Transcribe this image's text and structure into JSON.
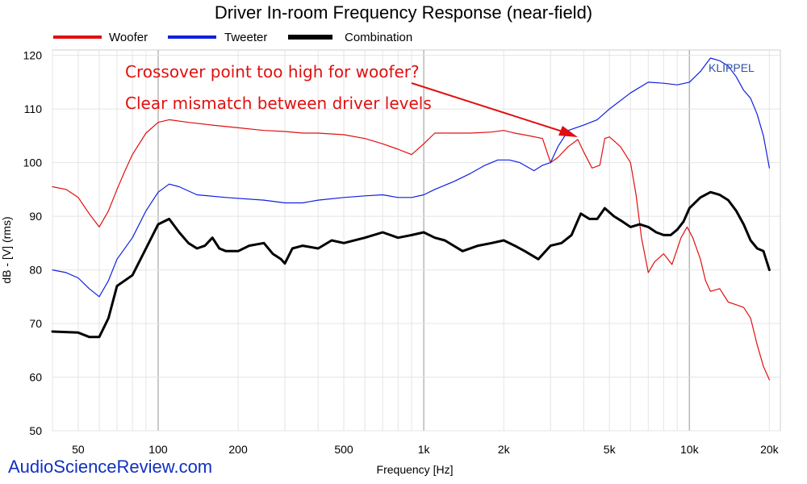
{
  "chart_data": {
    "type": "line",
    "title": "Driver In-room Frequency Response (near-field)",
    "xlabel": "Frequency [Hz]",
    "ylabel": "dB - [V] (rms)",
    "x_scale": "log",
    "xlim": [
      40,
      22000
    ],
    "ylim": [
      50,
      121
    ],
    "grid": true,
    "legend_position": "top-left",
    "x_ticks": [
      {
        "value": 50,
        "label": "50"
      },
      {
        "value": 100,
        "label": "100"
      },
      {
        "value": 200,
        "label": "200"
      },
      {
        "value": 500,
        "label": "500"
      },
      {
        "value": 1000,
        "label": "1k"
      },
      {
        "value": 2000,
        "label": "2k"
      },
      {
        "value": 5000,
        "label": "5k"
      },
      {
        "value": 10000,
        "label": "10k"
      },
      {
        "value": 20000,
        "label": "20k"
      }
    ],
    "y_ticks": [
      50,
      60,
      70,
      80,
      90,
      100,
      110,
      120
    ],
    "series": [
      {
        "name": "Woofer",
        "color": "#e01010",
        "line_width": "thin",
        "points": [
          [
            40,
            95.5
          ],
          [
            45,
            95
          ],
          [
            50,
            93.5
          ],
          [
            55,
            90.5
          ],
          [
            60,
            88
          ],
          [
            65,
            91
          ],
          [
            70,
            95
          ],
          [
            75,
            98.5
          ],
          [
            80,
            101.5
          ],
          [
            90,
            105.5
          ],
          [
            100,
            107.5
          ],
          [
            110,
            108
          ],
          [
            130,
            107.5
          ],
          [
            160,
            107
          ],
          [
            200,
            106.5
          ],
          [
            250,
            106
          ],
          [
            300,
            105.8
          ],
          [
            350,
            105.5
          ],
          [
            400,
            105.5
          ],
          [
            500,
            105.2
          ],
          [
            600,
            104.5
          ],
          [
            700,
            103.5
          ],
          [
            800,
            102.5
          ],
          [
            900,
            101.5
          ],
          [
            1000,
            103.5
          ],
          [
            1100,
            105.5
          ],
          [
            1300,
            105.5
          ],
          [
            1500,
            105.5
          ],
          [
            1800,
            105.7
          ],
          [
            2000,
            106
          ],
          [
            2200,
            105.5
          ],
          [
            2500,
            105
          ],
          [
            2800,
            104.5
          ],
          [
            3000,
            100
          ],
          [
            3200,
            101
          ],
          [
            3500,
            103
          ],
          [
            3800,
            104.3
          ],
          [
            4000,
            102
          ],
          [
            4300,
            99
          ],
          [
            4600,
            99.5
          ],
          [
            4800,
            104.5
          ],
          [
            5000,
            104.8
          ],
          [
            5500,
            103
          ],
          [
            6000,
            100
          ],
          [
            6300,
            94
          ],
          [
            6600,
            86
          ],
          [
            7000,
            79.5
          ],
          [
            7400,
            81.5
          ],
          [
            8000,
            83
          ],
          [
            8600,
            81
          ],
          [
            9300,
            86
          ],
          [
            9800,
            88
          ],
          [
            10300,
            86
          ],
          [
            11000,
            82
          ],
          [
            11500,
            78
          ],
          [
            12000,
            76
          ],
          [
            13000,
            76.5
          ],
          [
            14000,
            74
          ],
          [
            15000,
            73.5
          ],
          [
            16000,
            73
          ],
          [
            17000,
            71
          ],
          [
            18000,
            66
          ],
          [
            19000,
            62
          ],
          [
            20000,
            59.5
          ]
        ]
      },
      {
        "name": "Tweeter",
        "color": "#1020e0",
        "line_width": "thin",
        "points": [
          [
            40,
            80
          ],
          [
            45,
            79.5
          ],
          [
            50,
            78.5
          ],
          [
            55,
            76.5
          ],
          [
            60,
            75
          ],
          [
            65,
            78
          ],
          [
            70,
            82
          ],
          [
            80,
            86
          ],
          [
            90,
            91
          ],
          [
            100,
            94.5
          ],
          [
            110,
            96
          ],
          [
            120,
            95.5
          ],
          [
            140,
            94
          ],
          [
            180,
            93.5
          ],
          [
            250,
            93
          ],
          [
            300,
            92.5
          ],
          [
            350,
            92.5
          ],
          [
            400,
            93
          ],
          [
            500,
            93.5
          ],
          [
            600,
            93.8
          ],
          [
            700,
            94
          ],
          [
            800,
            93.5
          ],
          [
            900,
            93.5
          ],
          [
            1000,
            94
          ],
          [
            1100,
            95
          ],
          [
            1300,
            96.5
          ],
          [
            1500,
            98
          ],
          [
            1700,
            99.5
          ],
          [
            1900,
            100.5
          ],
          [
            2100,
            100.5
          ],
          [
            2300,
            100
          ],
          [
            2600,
            98.5
          ],
          [
            2800,
            99.5
          ],
          [
            3000,
            100
          ],
          [
            3200,
            103
          ],
          [
            3500,
            106
          ],
          [
            4000,
            107
          ],
          [
            4500,
            108
          ],
          [
            5000,
            110
          ],
          [
            6000,
            113
          ],
          [
            7000,
            115
          ],
          [
            8000,
            114.8
          ],
          [
            9000,
            114.5
          ],
          [
            10000,
            115
          ],
          [
            11000,
            117
          ],
          [
            12000,
            119.5
          ],
          [
            13000,
            119
          ],
          [
            14000,
            118
          ],
          [
            15000,
            116
          ],
          [
            16000,
            113.5
          ],
          [
            17000,
            112
          ],
          [
            18000,
            109
          ],
          [
            19000,
            105
          ],
          [
            20000,
            99
          ]
        ]
      },
      {
        "name": "Combination",
        "color": "#000000",
        "line_width": "thick",
        "points": [
          [
            40,
            68.5
          ],
          [
            50,
            68.3
          ],
          [
            55,
            67.5
          ],
          [
            60,
            67.5
          ],
          [
            65,
            71
          ],
          [
            70,
            77
          ],
          [
            80,
            79
          ],
          [
            90,
            84
          ],
          [
            100,
            88.5
          ],
          [
            110,
            89.5
          ],
          [
            120,
            87
          ],
          [
            130,
            85
          ],
          [
            140,
            84
          ],
          [
            150,
            84.5
          ],
          [
            160,
            86
          ],
          [
            170,
            84
          ],
          [
            180,
            83.5
          ],
          [
            200,
            83.5
          ],
          [
            220,
            84.5
          ],
          [
            250,
            85
          ],
          [
            270,
            83
          ],
          [
            290,
            82
          ],
          [
            300,
            81.2
          ],
          [
            320,
            84
          ],
          [
            350,
            84.5
          ],
          [
            400,
            84
          ],
          [
            450,
            85.5
          ],
          [
            500,
            85
          ],
          [
            600,
            86
          ],
          [
            700,
            87
          ],
          [
            800,
            86
          ],
          [
            900,
            86.5
          ],
          [
            1000,
            87
          ],
          [
            1100,
            86
          ],
          [
            1200,
            85.5
          ],
          [
            1400,
            83.5
          ],
          [
            1600,
            84.5
          ],
          [
            1800,
            85
          ],
          [
            2000,
            85.5
          ],
          [
            2200,
            84.5
          ],
          [
            2400,
            83.5
          ],
          [
            2700,
            82
          ],
          [
            3000,
            84.5
          ],
          [
            3300,
            85
          ],
          [
            3600,
            86.5
          ],
          [
            3900,
            90.5
          ],
          [
            4200,
            89.5
          ],
          [
            4500,
            89.5
          ],
          [
            4800,
            91.5
          ],
          [
            5200,
            90
          ],
          [
            5600,
            89
          ],
          [
            6000,
            88
          ],
          [
            6500,
            88.5
          ],
          [
            7000,
            88
          ],
          [
            7500,
            87
          ],
          [
            8000,
            86.5
          ],
          [
            8500,
            86.5
          ],
          [
            9000,
            87.5
          ],
          [
            9500,
            89
          ],
          [
            10000,
            91.5
          ],
          [
            11000,
            93.5
          ],
          [
            12000,
            94.5
          ],
          [
            13000,
            94
          ],
          [
            14000,
            93
          ],
          [
            15000,
            91
          ],
          [
            16000,
            88.5
          ],
          [
            17000,
            85.5
          ],
          [
            18000,
            84
          ],
          [
            19000,
            83.5
          ],
          [
            20000,
            80
          ]
        ]
      }
    ],
    "annotations": [
      {
        "text": "Crossover point too high for woofer?",
        "color": "#e01010"
      },
      {
        "text": "Clear mismatch between driver levels",
        "color": "#e01010"
      }
    ],
    "arrow": {
      "color": "#e01010"
    },
    "watermark": {
      "text": "KLIPPEL",
      "color": "#3050a0"
    },
    "credit": {
      "text": "AudioScienceReview.com",
      "color": "#1030c0"
    }
  }
}
